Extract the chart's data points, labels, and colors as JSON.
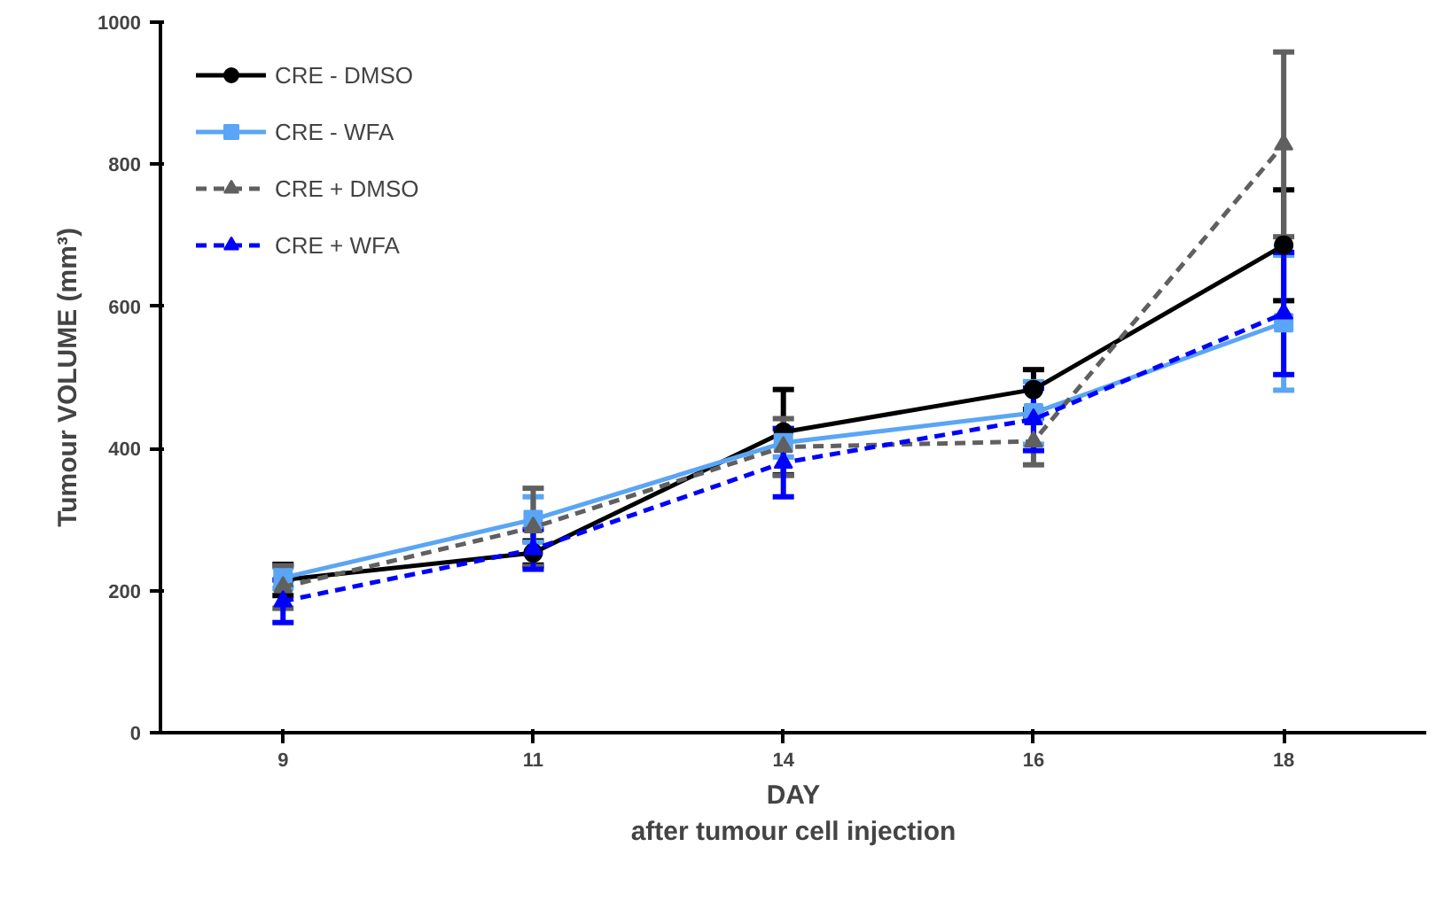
{
  "chart_data": {
    "type": "line",
    "categories": [
      "9",
      "11",
      "14",
      "16",
      "18"
    ],
    "xlabel": "DAY\nafter tumour cell injection",
    "ylabel": "Tumour VOLUME (mm³)",
    "ylim": [
      0,
      1000
    ],
    "yticks": [
      0,
      200,
      400,
      600,
      800,
      1000
    ],
    "grid": false,
    "legend": "top left",
    "series": [
      {
        "name": "CRE - DMSO",
        "color": "#000000",
        "marker": "circle",
        "line_style": "solid",
        "values": [
          215,
          253,
          423,
          483,
          686
        ],
        "errors": [
          22,
          17,
          60,
          28,
          78
        ]
      },
      {
        "name": "CRE - WFA",
        "color": "#5aa5f5",
        "marker": "square",
        "line_style": "solid",
        "values": [
          218,
          300,
          408,
          450,
          577
        ],
        "errors": [
          15,
          32,
          20,
          44,
          95
        ]
      },
      {
        "name": "CRE + DMSO",
        "color": "#606060",
        "marker": "triangle",
        "line_style": "dashed",
        "values": [
          205,
          289,
          402,
          410,
          828
        ],
        "errors": [
          30,
          55,
          40,
          33,
          130
        ]
      },
      {
        "name": "CRE + WFA",
        "color": "#0000ff",
        "marker": "triangle",
        "line_style": "dashed",
        "values": [
          185,
          258,
          380,
          441,
          590
        ],
        "errors": [
          30,
          28,
          48,
          44,
          86
        ]
      }
    ]
  }
}
